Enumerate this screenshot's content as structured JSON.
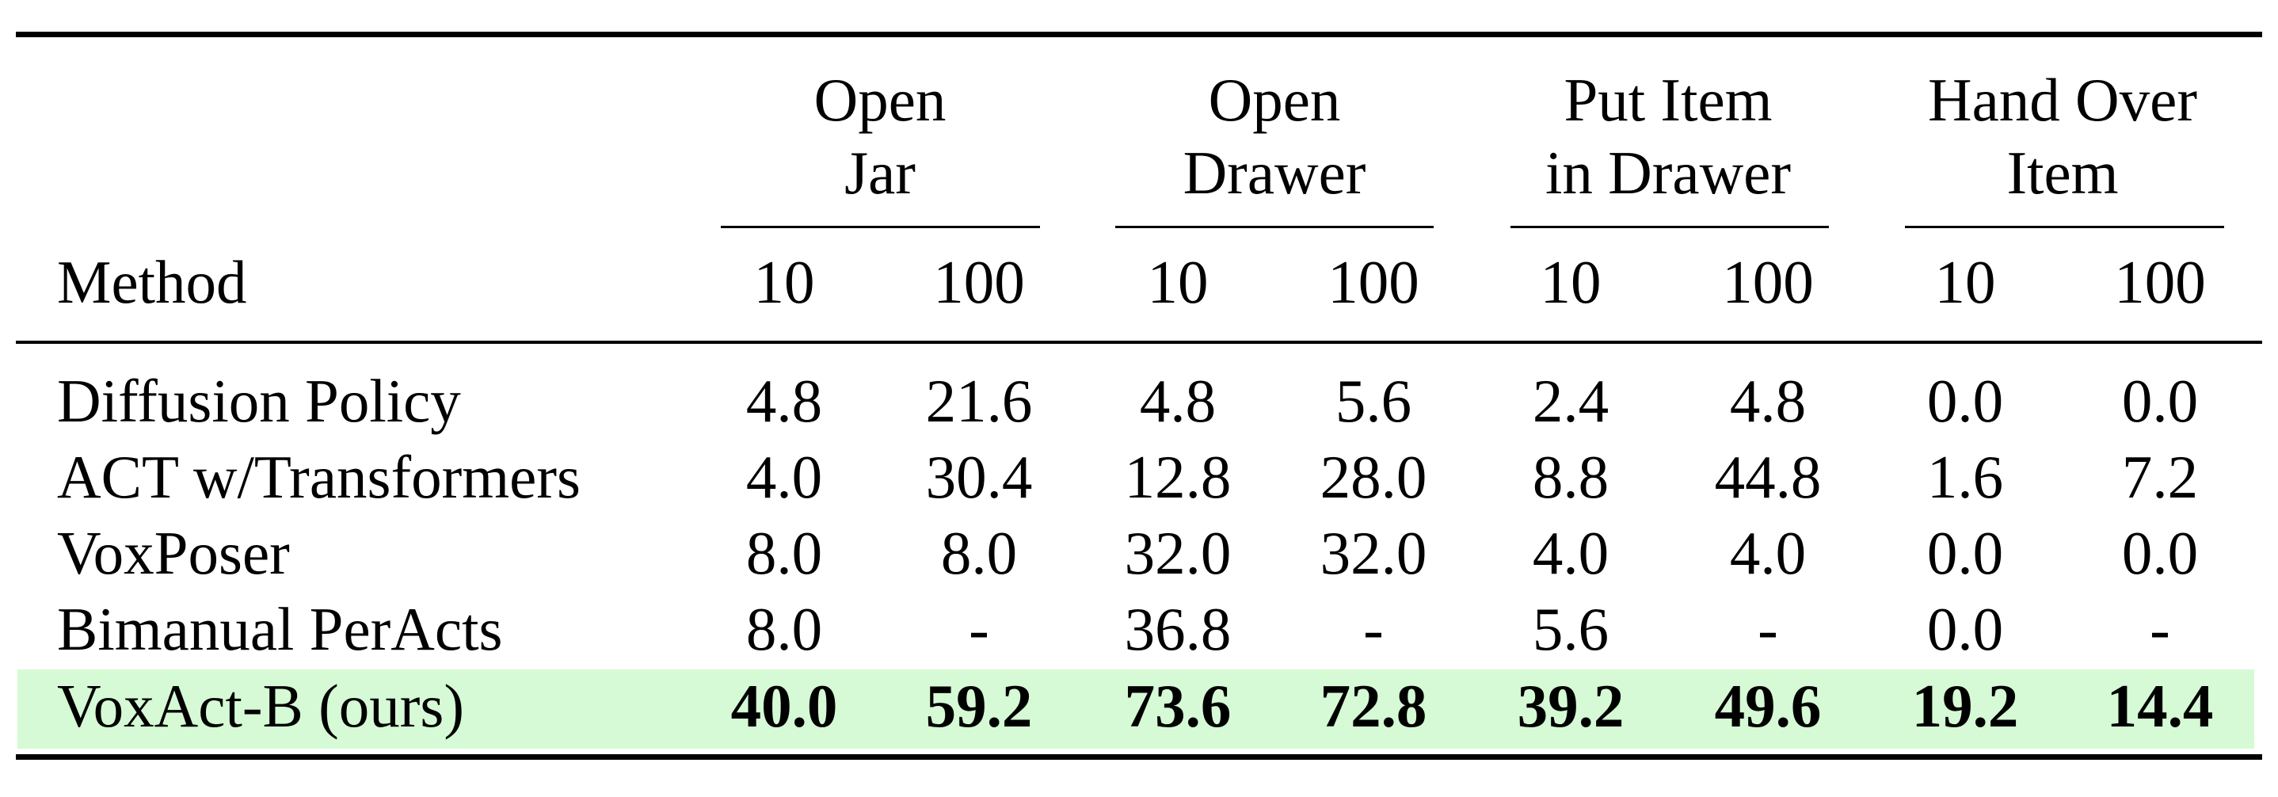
{
  "table": {
    "method_header": "Method",
    "groups": [
      {
        "line1": "Open",
        "line2": "Jar"
      },
      {
        "line1": "Open",
        "line2": "Drawer"
      },
      {
        "line1": "Put Item",
        "line2": "in Drawer"
      },
      {
        "line1": "Hand Over",
        "line2": "Item"
      }
    ],
    "sub_headers": [
      "10",
      "100",
      "10",
      "100",
      "10",
      "100",
      "10",
      "100"
    ],
    "rows": [
      {
        "method": "Diffusion Policy",
        "values": [
          "4.8",
          "21.6",
          "4.8",
          "5.6",
          "2.4",
          "4.8",
          "0.0",
          "0.0"
        ]
      },
      {
        "method": "ACT w/Transformers",
        "values": [
          "4.0",
          "30.4",
          "12.8",
          "28.0",
          "8.8",
          "44.8",
          "1.6",
          "7.2"
        ]
      },
      {
        "method": "VoxPoser",
        "values": [
          "8.0",
          "8.0",
          "32.0",
          "32.0",
          "4.0",
          "4.0",
          "0.0",
          "0.0"
        ]
      },
      {
        "method": "Bimanual PerActs",
        "values": [
          "8.0",
          "-",
          "36.8",
          "-",
          "5.6",
          "-",
          "0.0",
          "-"
        ]
      },
      {
        "method": "VoxAct-B (ours)",
        "values": [
          "40.0",
          "59.2",
          "73.6",
          "72.8",
          "39.2",
          "49.6",
          "19.2",
          "14.4"
        ],
        "highlight": true
      }
    ],
    "highlight_color": "#d5fad5"
  }
}
